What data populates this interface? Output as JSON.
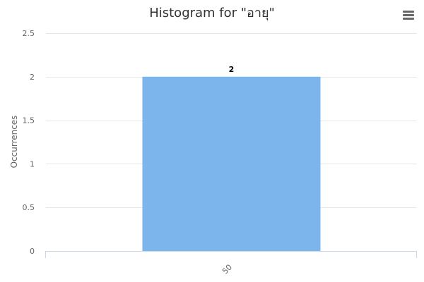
{
  "colors": {
    "bar": "#7cb5ec",
    "grid": "#e6e6e6",
    "axis_line": "#ccd6eb",
    "text": "#333333",
    "tick_text": "#666666",
    "menu": "#666666"
  },
  "menu": {
    "icon": "hamburger-menu-icon"
  },
  "chart_data": {
    "type": "bar",
    "title": "Histogram for \"อายุ\"",
    "ylabel": "Occurrences",
    "xlabel": "",
    "categories": [
      "50"
    ],
    "values": [
      2
    ],
    "data_labels": [
      "2"
    ],
    "ylim": [
      0,
      2.5
    ],
    "yticks": [
      "0",
      "0.5",
      "1",
      "1.5",
      "2",
      "2.5"
    ],
    "grid": true,
    "legend": "none"
  }
}
